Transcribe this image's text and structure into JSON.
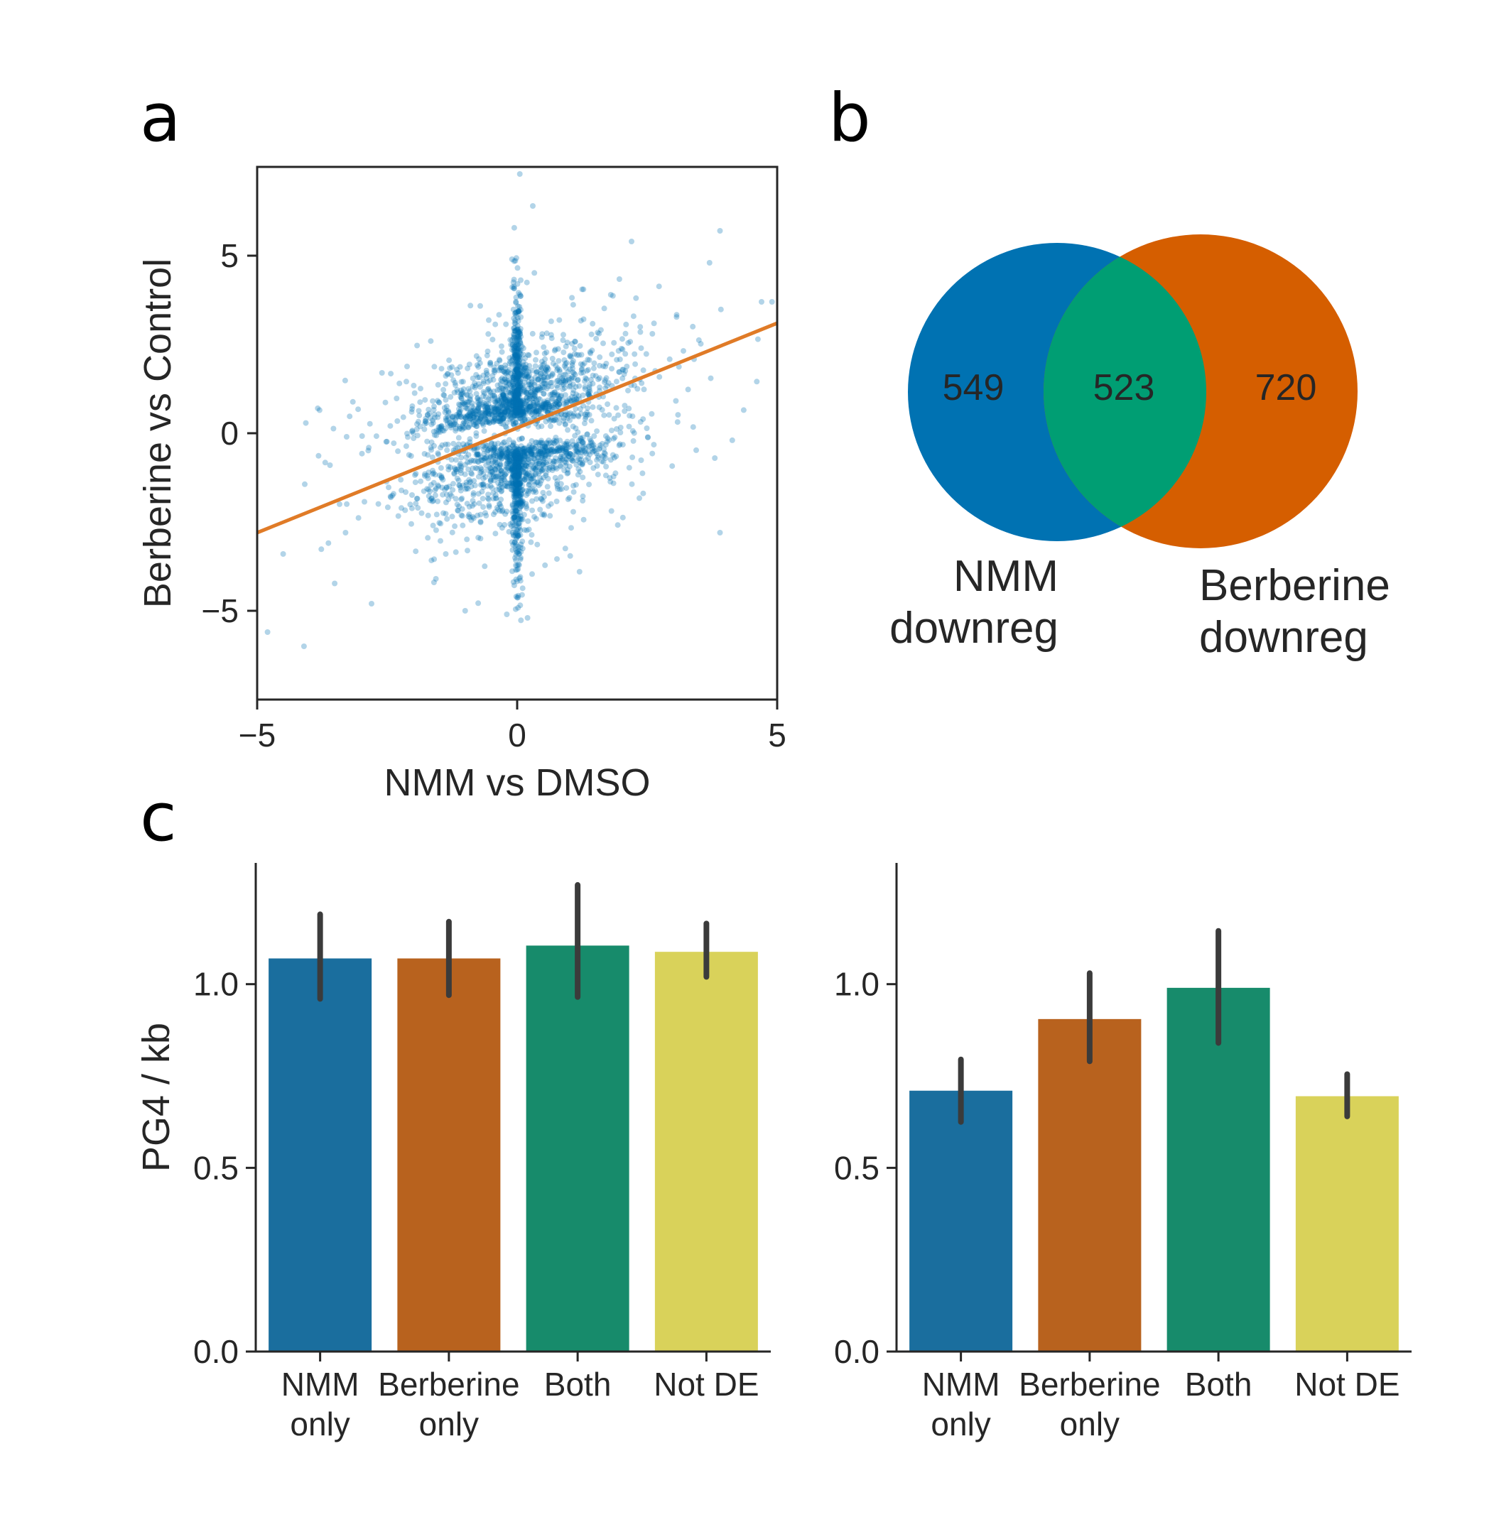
{
  "panels": {
    "a": "a",
    "b": "b",
    "c": "c"
  },
  "colors": {
    "scatter_point": "#0072b2",
    "regression_line": "#e07b27",
    "venn_left": "#0072b2",
    "venn_right": "#d55e00",
    "venn_overlap": "#009e73",
    "bar_nmm_only": "#1a6e9e",
    "bar_berberine_only": "#b8621e",
    "bar_both": "#178b6b",
    "bar_not_de": "#d9d25a",
    "error_bar": "#3b3b3b",
    "axis": "#262626"
  },
  "chart_data": [
    {
      "type": "scatter",
      "xlabel": "NMM vs DMSO",
      "ylabel": "Berberine vs Control",
      "xlim": [
        -5,
        5
      ],
      "ylim": [
        -7.5,
        7.5
      ],
      "xticks": [
        -5,
        0,
        5
      ],
      "yticks": [
        -5,
        0,
        5
      ],
      "xtick_labels": [
        "−5",
        "0",
        "5"
      ],
      "ytick_labels": [
        "−5",
        "0",
        "5"
      ],
      "grid": false,
      "regression_line": {
        "x": [
          -5,
          5
        ],
        "y": [
          -2.8,
          3.1
        ]
      },
      "outliers": [
        [
          0.05,
          7.3
        ],
        [
          0.3,
          6.4
        ],
        [
          3.9,
          5.7
        ],
        [
          2.2,
          5.4
        ],
        [
          3.7,
          4.8
        ],
        [
          -0.1,
          4.9
        ],
        [
          -4.5,
          -3.4
        ],
        [
          -4.8,
          -5.6
        ],
        [
          -4.1,
          -6.0
        ],
        [
          3.9,
          -2.8
        ],
        [
          -3.3,
          -2.8
        ],
        [
          4.7,
          3.7
        ],
        [
          4.9,
          3.7
        ],
        [
          -2.6,
          1.7
        ],
        [
          3.8,
          -0.7
        ],
        [
          -2.8,
          -4.8
        ],
        [
          1.2,
          -3.9
        ],
        [
          -3.6,
          -0.9
        ],
        [
          -1.6,
          -4.2
        ],
        [
          2.6,
          2.8
        ],
        [
          -0.2,
          -5.1
        ],
        [
          0.2,
          -5.2
        ],
        [
          -1.0,
          -5.0
        ],
        [
          1.8,
          3.9
        ]
      ]
    },
    {
      "type": "venn",
      "sets": [
        {
          "label_line1": "NMM",
          "label_line2": "downreg",
          "only": "549"
        },
        {
          "label_line1": "Berberine",
          "label_line2": "downreg",
          "only": "720"
        }
      ],
      "overlap": "523"
    },
    {
      "type": "bar",
      "ylabel": "PG4 / kb",
      "ylim": [
        0,
        1.33
      ],
      "yticks": [
        0,
        0.5,
        1.0
      ],
      "ytick_labels": [
        "0.0",
        "0.5",
        "1.0"
      ],
      "categories": [
        {
          "line1": "NMM",
          "line2": "only"
        },
        {
          "line1": "Berberine",
          "line2": "only"
        },
        {
          "line1": "Both",
          "line2": ""
        },
        {
          "line1": "Not DE",
          "line2": ""
        }
      ],
      "values": [
        1.07,
        1.07,
        1.105,
        1.088
      ],
      "err_low": [
        0.96,
        0.97,
        0.965,
        1.02
      ],
      "err_high": [
        1.19,
        1.17,
        1.27,
        1.165
      ]
    },
    {
      "type": "bar",
      "ylim": [
        0,
        1.33
      ],
      "yticks": [
        0,
        0.5,
        1.0
      ],
      "ytick_labels": [
        "0.0",
        "0.5",
        "1.0"
      ],
      "categories": [
        {
          "line1": "NMM",
          "line2": "only"
        },
        {
          "line1": "Berberine",
          "line2": "only"
        },
        {
          "line1": "Both",
          "line2": ""
        },
        {
          "line1": "Not DE",
          "line2": ""
        }
      ],
      "values": [
        0.71,
        0.905,
        0.99,
        0.695
      ],
      "err_low": [
        0.625,
        0.79,
        0.84,
        0.64
      ],
      "err_high": [
        0.795,
        1.03,
        1.145,
        0.755
      ]
    }
  ]
}
